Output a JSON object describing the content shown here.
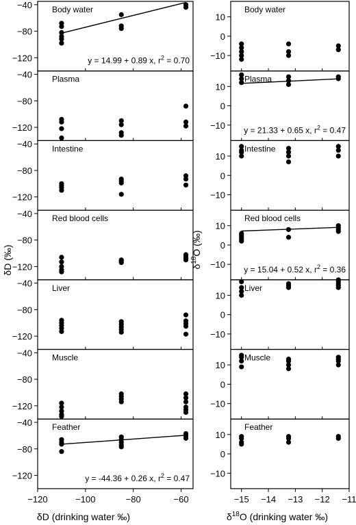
{
  "figure": {
    "left_ylabel": "δD (‰)",
    "left_xlabel": "δD (drinking water ‰)",
    "right_ylabel_main": "δ",
    "right_ylabel_sup": "18",
    "right_ylabel_tail": "O (‰)",
    "right_xlabel_main": "δ",
    "right_xlabel_sup": "18",
    "right_xlabel_tail": "O (drinking water ‰)"
  },
  "chart_data": [
    {
      "type": "scatter",
      "column": "left",
      "x_ticks": [
        -120,
        -100,
        -80,
        -60
      ],
      "xlim": [
        -120,
        -55
      ],
      "y_ticks": [
        -40,
        -80,
        -120
      ],
      "ylim": [
        -140,
        -35
      ],
      "xlabel": "δD (drinking water ‰)",
      "ylabel": "δD (‰)",
      "panels": [
        {
          "title": "Body water",
          "points": [
            [
              -110,
              -68
            ],
            [
              -110,
              -73
            ],
            [
              -110,
              -82
            ],
            [
              -110,
              -88
            ],
            [
              -110,
              -92
            ],
            [
              -110,
              -98
            ],
            [
              -85,
              -55
            ],
            [
              -85,
              -72
            ],
            [
              -85,
              -76
            ],
            [
              -58,
              -40
            ],
            [
              -58,
              -44
            ]
          ],
          "regression": {
            "intercept": 14.99,
            "slope": 0.89,
            "x_range": [
              -110,
              -58
            ]
          },
          "equation": "y = 14.99 + 0.89 x, r",
          "r2_sup": "2",
          "r2_val": " = 0.70"
        },
        {
          "title": "Plasma",
          "points": [
            [
              -110,
              -108
            ],
            [
              -110,
              -112
            ],
            [
              -110,
              -122
            ],
            [
              -110,
              -136
            ],
            [
              -85,
              -110
            ],
            [
              -85,
              -116
            ],
            [
              -85,
              -128
            ],
            [
              -85,
              -132
            ],
            [
              -58,
              -88
            ],
            [
              -58,
              -112
            ],
            [
              -58,
              -118
            ]
          ]
        },
        {
          "title": "Intestine",
          "points": [
            [
              -110,
              -100
            ],
            [
              -110,
              -103
            ],
            [
              -110,
              -106
            ],
            [
              -110,
              -110
            ],
            [
              -85,
              -93
            ],
            [
              -85,
              -96
            ],
            [
              -85,
              -99
            ],
            [
              -85,
              -116
            ],
            [
              -58,
              -88
            ],
            [
              -58,
              -93
            ],
            [
              -58,
              -102
            ]
          ]
        },
        {
          "title": "Red blood cells",
          "points": [
            [
              -110,
              -106
            ],
            [
              -110,
              -113
            ],
            [
              -110,
              -120
            ],
            [
              -110,
              -125
            ],
            [
              -110,
              -128
            ],
            [
              -85,
              -110
            ],
            [
              -85,
              -112
            ],
            [
              -85,
              -114
            ],
            [
              -58,
              -102
            ],
            [
              -58,
              -105
            ],
            [
              -58,
              -108
            ],
            [
              -58,
              -110
            ]
          ]
        },
        {
          "title": "Liver",
          "points": [
            [
              -110,
              -96
            ],
            [
              -110,
              -100
            ],
            [
              -110,
              -104
            ],
            [
              -110,
              -108
            ],
            [
              -110,
              -113
            ],
            [
              -85,
              -98
            ],
            [
              -85,
              -102
            ],
            [
              -85,
              -106
            ],
            [
              -85,
              -110
            ],
            [
              -85,
              -114
            ],
            [
              -58,
              -88
            ],
            [
              -58,
              -97
            ],
            [
              -58,
              -101
            ],
            [
              -58,
              -105
            ],
            [
              -58,
              -117
            ]
          ]
        },
        {
          "title": "Muscle",
          "points": [
            [
              -110,
              -116
            ],
            [
              -110,
              -122
            ],
            [
              -110,
              -128
            ],
            [
              -110,
              -133
            ],
            [
              -110,
              -136
            ],
            [
              -85,
              -102
            ],
            [
              -85,
              -106
            ],
            [
              -85,
              -110
            ],
            [
              -85,
              -114
            ],
            [
              -58,
              -102
            ],
            [
              -58,
              -108
            ],
            [
              -58,
              -114
            ],
            [
              -58,
              -122
            ],
            [
              -58,
              -126
            ],
            [
              -58,
              -130
            ]
          ]
        },
        {
          "title": "Feather",
          "points": [
            [
              -110,
              -66
            ],
            [
              -110,
              -70
            ],
            [
              -110,
              -73
            ],
            [
              -110,
              -84
            ],
            [
              -85,
              -62
            ],
            [
              -85,
              -66
            ],
            [
              -85,
              -70
            ],
            [
              -85,
              -74
            ],
            [
              -85,
              -77
            ],
            [
              -58,
              -57
            ],
            [
              -58,
              -60
            ],
            [
              -58,
              -64
            ]
          ],
          "regression": {
            "intercept": -44.36,
            "slope": 0.26,
            "x_range": [
              -110,
              -58
            ]
          },
          "equation": "y = -44.36 + 0.26 x, r",
          "r2_sup": "2",
          "r2_val": " = 0.47"
        }
      ]
    },
    {
      "type": "scatter",
      "column": "right",
      "x_ticks": [
        -15,
        -14,
        -13,
        -12,
        -11
      ],
      "xlim": [
        -15.4,
        -11
      ],
      "y_ticks": [
        10,
        0,
        -10
      ],
      "ylim": [
        -18,
        18
      ],
      "xlabel": "δ18O (drinking water ‰)",
      "ylabel": "δ18O (‰)",
      "panels": [
        {
          "title": "Body water",
          "points": [
            [
              -15,
              -4
            ],
            [
              -15,
              -6
            ],
            [
              -15,
              -8
            ],
            [
              -15,
              -10
            ],
            [
              -15,
              -12
            ],
            [
              -13.25,
              -4
            ],
            [
              -13.25,
              -8
            ],
            [
              -13.25,
              -10
            ],
            [
              -11.4,
              -5
            ],
            [
              -11.4,
              -7
            ]
          ]
        },
        {
          "title": "Plasma",
          "points": [
            [
              -15,
              12
            ],
            [
              -15,
              14
            ],
            [
              -15,
              16
            ],
            [
              -13.25,
              11
            ],
            [
              -13.25,
              13
            ],
            [
              -13.25,
              15
            ],
            [
              -11.4,
              14
            ],
            [
              -11.4,
              15
            ]
          ],
          "regression": {
            "intercept": 21.33,
            "slope": 0.65,
            "x_range": [
              -15,
              -11.4
            ]
          },
          "equation": "y = 21.33 + 0.65 x, r",
          "r2_sup": "2",
          "r2_val": " = 0.47"
        },
        {
          "title": "Intestine",
          "points": [
            [
              -15,
              10
            ],
            [
              -15,
              12
            ],
            [
              -15,
              13
            ],
            [
              -15,
              15
            ],
            [
              -13.25,
              7
            ],
            [
              -13.25,
              10
            ],
            [
              -13.25,
              12
            ],
            [
              -13.25,
              14
            ],
            [
              -11.4,
              10
            ],
            [
              -11.4,
              13
            ],
            [
              -11.4,
              15
            ]
          ]
        },
        {
          "title": "Red blood cells",
          "points": [
            [
              -15,
              2
            ],
            [
              -15,
              3
            ],
            [
              -15,
              4
            ],
            [
              -15,
              5
            ],
            [
              -15,
              6
            ],
            [
              -13.25,
              4
            ],
            [
              -13.25,
              8
            ],
            [
              -11.4,
              7
            ],
            [
              -11.4,
              8
            ],
            [
              -11.4,
              9
            ],
            [
              -11.4,
              10
            ]
          ],
          "regression": {
            "intercept": 15.04,
            "slope": 0.52,
            "x_range": [
              -15,
              -11.4
            ]
          },
          "equation": "y = 15.04 + 0.52 x, r",
          "r2_sup": "2",
          "r2_val": " = 0.36"
        },
        {
          "title": "Liver",
          "points": [
            [
              -15,
              10
            ],
            [
              -15,
              12
            ],
            [
              -15,
              14
            ],
            [
              -15,
              17
            ],
            [
              -13.25,
              14
            ],
            [
              -13.25,
              15
            ],
            [
              -13.25,
              16
            ],
            [
              -11.4,
              14
            ],
            [
              -11.4,
              15
            ],
            [
              -11.4,
              16
            ],
            [
              -11.4,
              17
            ],
            [
              -11.4,
              18
            ]
          ]
        },
        {
          "title": "Muscle",
          "points": [
            [
              -15,
              9
            ],
            [
              -15,
              12
            ],
            [
              -15,
              14
            ],
            [
              -15,
              15
            ],
            [
              -13.25,
              8
            ],
            [
              -13.25,
              10
            ],
            [
              -13.25,
              12
            ],
            [
              -13.25,
              13
            ],
            [
              -11.4,
              10
            ],
            [
              -11.4,
              12
            ],
            [
              -11.4,
              13
            ],
            [
              -11.4,
              14
            ]
          ]
        },
        {
          "title": "Feather",
          "points": [
            [
              -15,
              5
            ],
            [
              -15,
              6
            ],
            [
              -15,
              8
            ],
            [
              -15,
              9
            ],
            [
              -13.25,
              6
            ],
            [
              -13.25,
              8
            ],
            [
              -13.25,
              9
            ],
            [
              -11.4,
              8
            ],
            [
              -11.4,
              9
            ]
          ]
        }
      ]
    }
  ]
}
